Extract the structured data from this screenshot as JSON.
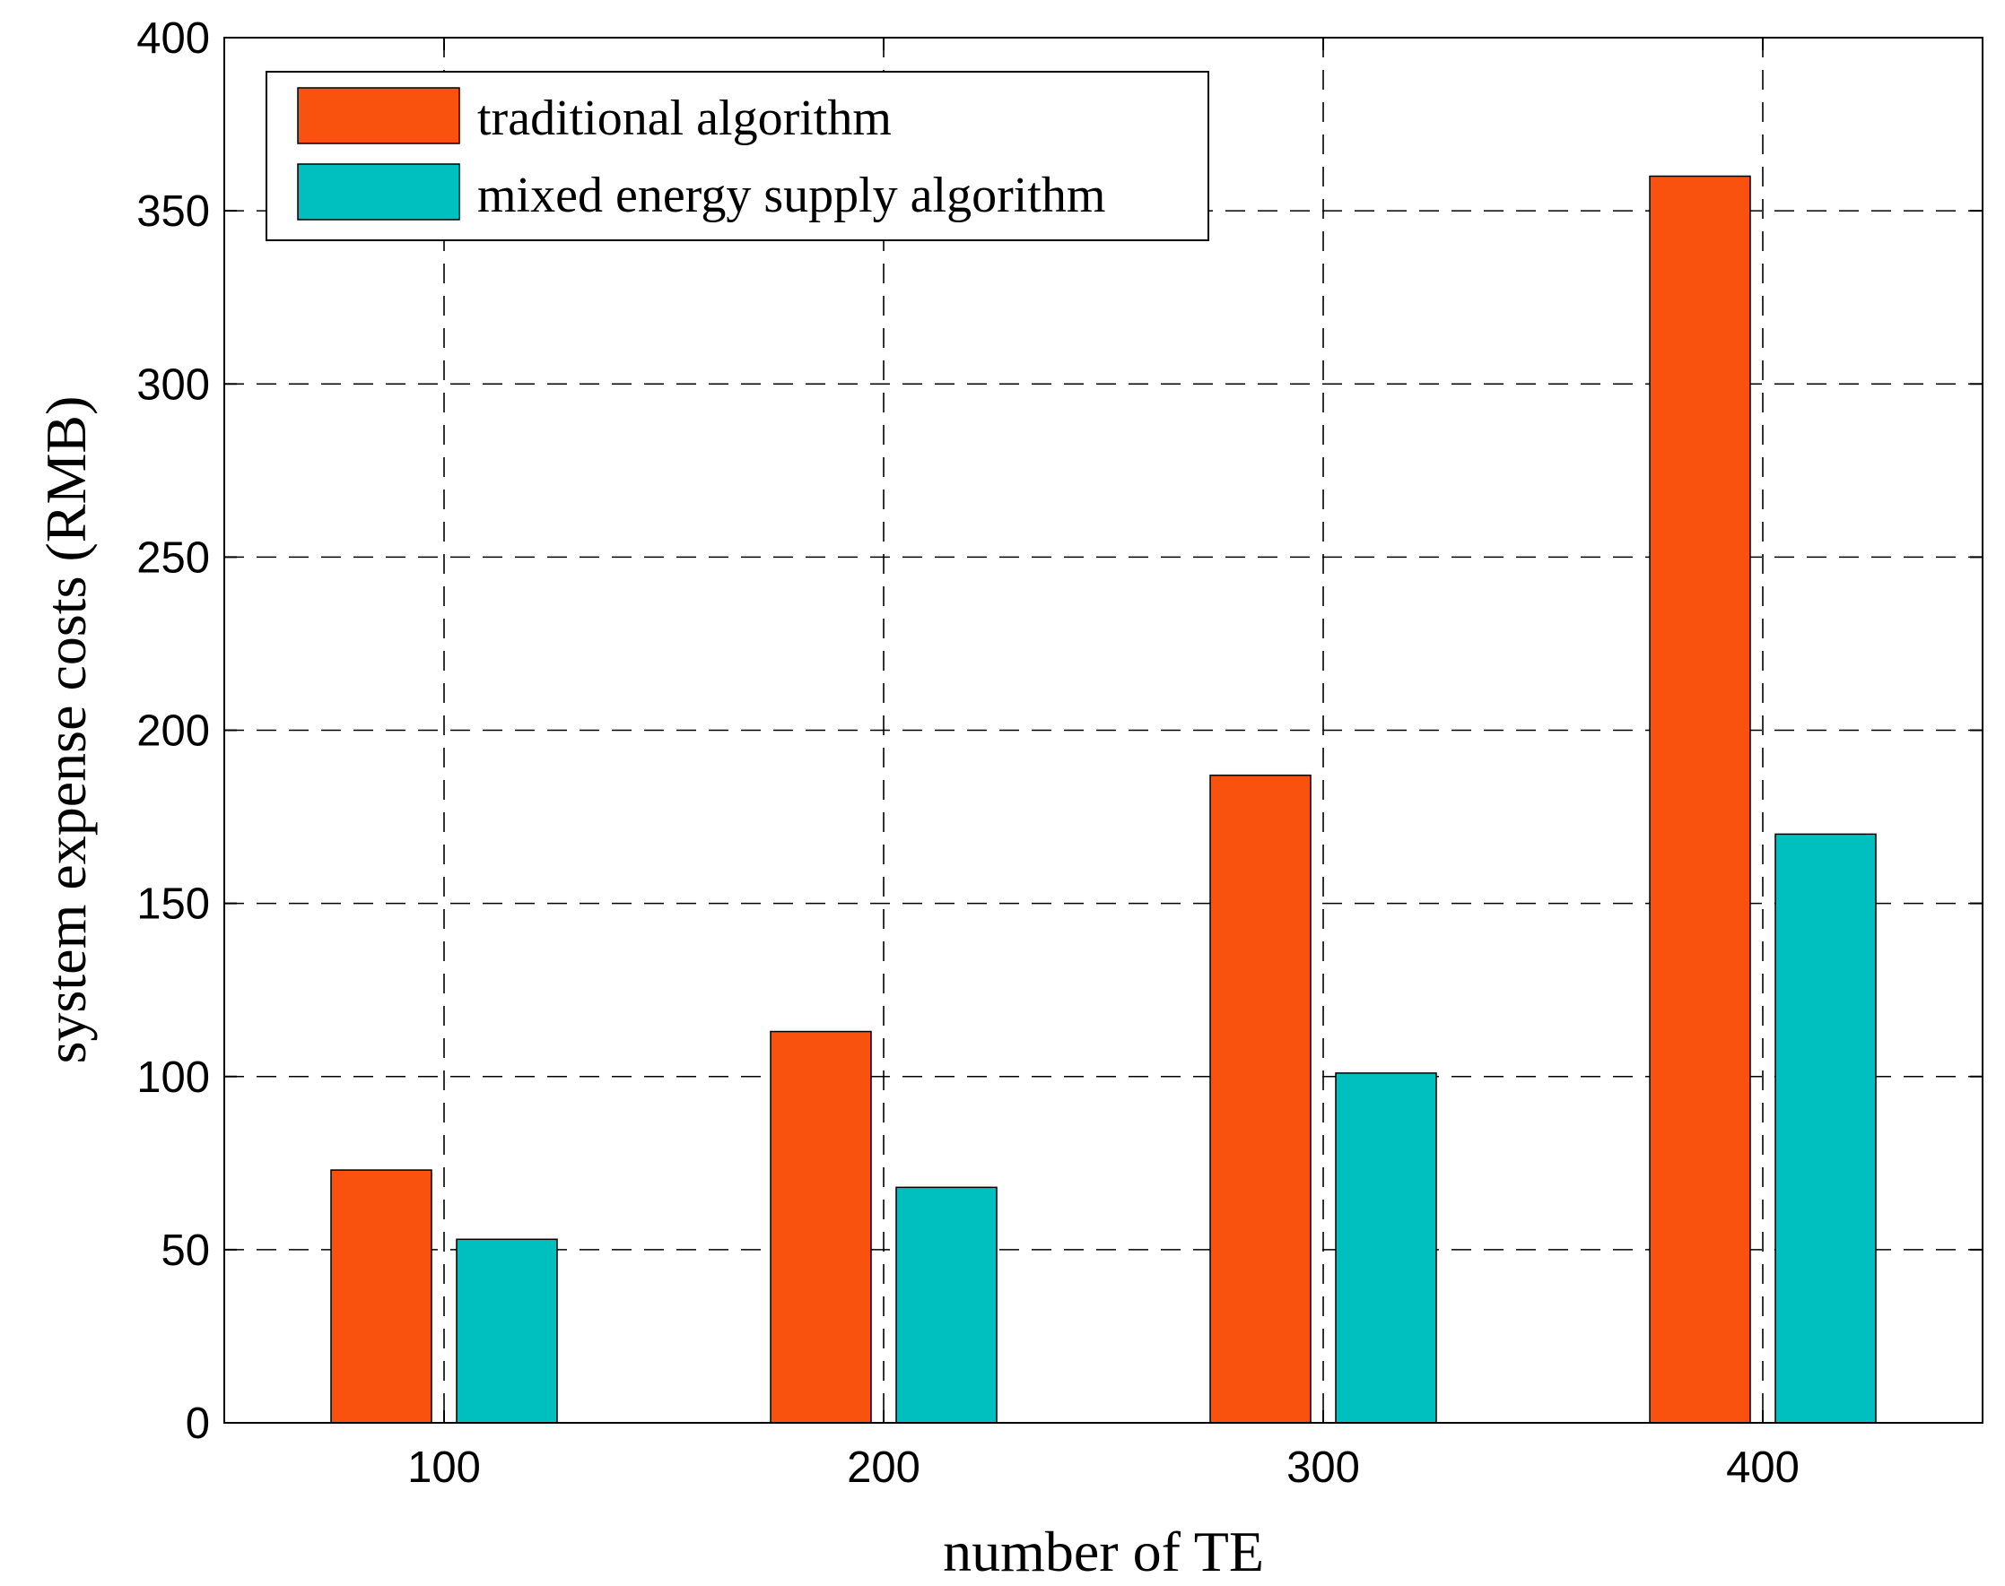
{
  "chart_data": {
    "type": "bar",
    "title": "",
    "xlabel": "number of TE",
    "ylabel": "system  expense costs (RMB)",
    "categories": [
      "100",
      "200",
      "300",
      "400"
    ],
    "series": [
      {
        "name": "traditional algorithm",
        "color": "#F9520E",
        "values": [
          73,
          113,
          187,
          360
        ]
      },
      {
        "name": "mixed energy supply algorithm",
        "color": "#00BFBF",
        "values": [
          53,
          68,
          101,
          170
        ]
      }
    ],
    "ylim": [
      0,
      400
    ],
    "yticks": [
      "0",
      "50",
      "100",
      "150",
      "200",
      "250",
      "300",
      "350",
      "400"
    ],
    "grid": true,
    "legend_position": "top-left"
  }
}
